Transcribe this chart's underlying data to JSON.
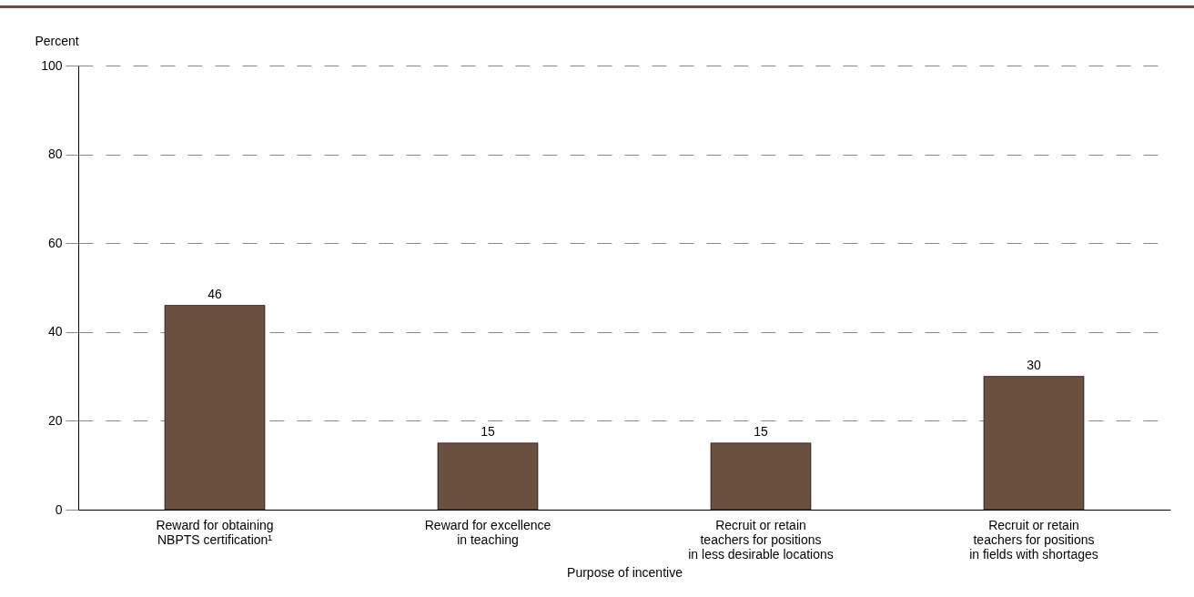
{
  "chart_data": {
    "type": "bar",
    "categories": [
      "Reward for obtaining\nNBPTS certification¹",
      "Reward for excellence\nin teaching",
      "Recruit or retain\nteachers for positions\nin less desirable locations",
      "Recruit or retain\nteachers for positions\nin fields with shortages"
    ],
    "values": [
      46,
      15,
      15,
      30
    ],
    "color": "#6b5040",
    "ylim": [
      0,
      100
    ],
    "yticks": [
      0,
      20,
      40,
      60,
      80,
      100
    ],
    "ylabel": "Percent",
    "xlabel": "Purpose of incentive",
    "grid": "y",
    "data_labels": true
  }
}
